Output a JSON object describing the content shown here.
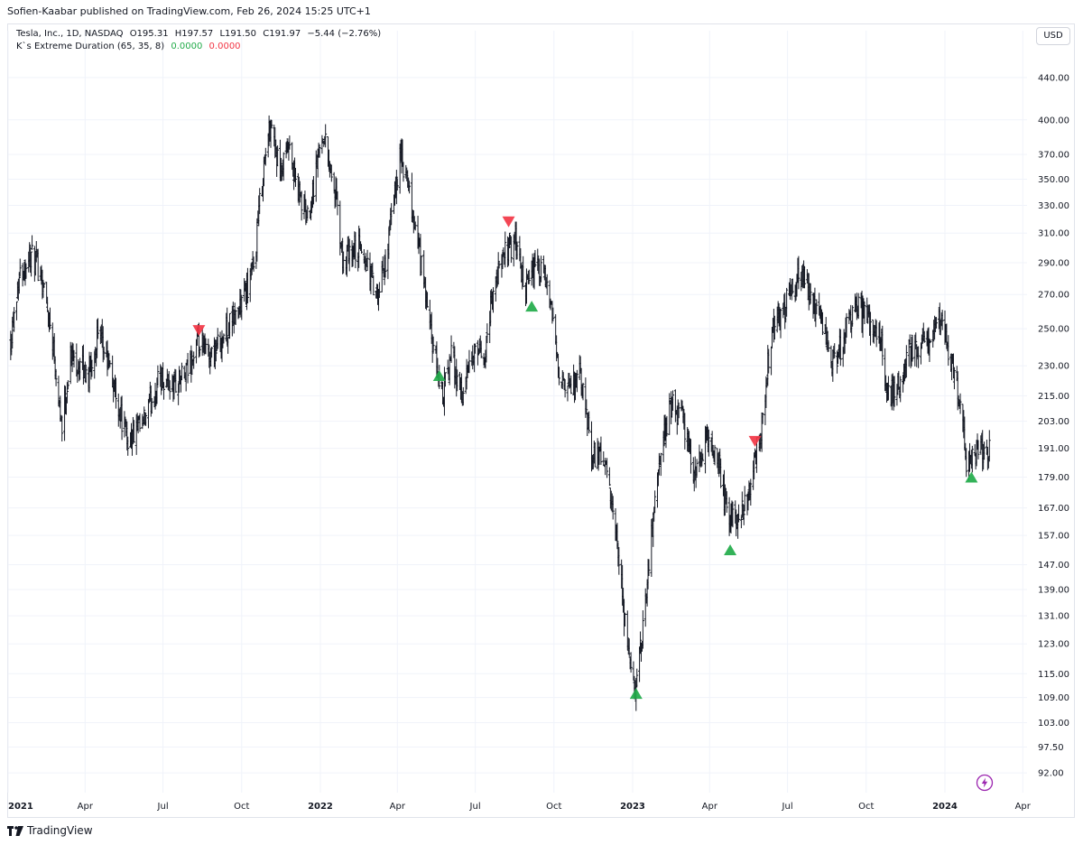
{
  "header": {
    "publish_line": "Sofien-Kaabar published on TradingView.com, Feb 26, 2024 15:25 UTC+1"
  },
  "legend": {
    "symbol": "Tesla, Inc., 1D, NASDAQ",
    "open": "O195.31",
    "high": "H197.57",
    "low": "L191.50",
    "close": "C191.97",
    "change": "−5.44 (−2.76%)",
    "indicator_name": "K`s Extreme Duration (65, 35, 8)",
    "indicator_value_1": "0.0000",
    "indicator_value_2": "0.0000"
  },
  "toolbar": {
    "currency_label": "USD"
  },
  "footer": {
    "brand": "TradingView"
  },
  "icons": {
    "currency": "usd-button",
    "alert": "lightning-bolt-icon",
    "brand": "tradingview-logo-icon"
  },
  "colors": {
    "bars": "#131722",
    "buy_signal": "#22ab4a",
    "sell_signal": "#f23645",
    "bolt": "#9c27b0",
    "grid": "#f0f3fa"
  },
  "chart_data": {
    "type": "ohlc",
    "title": "",
    "scale": "log",
    "ylim": [
      88,
      460
    ],
    "xlim": [
      "2021-01-01",
      "2024-04-06"
    ],
    "y_ticks": [
      "440.00",
      "400.00",
      "370.00",
      "350.00",
      "330.00",
      "310.00",
      "290.00",
      "270.00",
      "250.00",
      "230.00",
      "215.00",
      "203.00",
      "191.00",
      "179.00",
      "167.00",
      "157.00",
      "147.00",
      "139.00",
      "131.00",
      "123.00",
      "115.00",
      "109.00",
      "103.00",
      "97.50",
      "92.00"
    ],
    "x_ticks": [
      {
        "label": "2021",
        "date": "2021-01-01",
        "bold": true
      },
      {
        "label": "Apr",
        "date": "2021-04-01",
        "bold": false
      },
      {
        "label": "Jul",
        "date": "2021-07-01",
        "bold": false
      },
      {
        "label": "Oct",
        "date": "2021-10-01",
        "bold": false
      },
      {
        "label": "2022",
        "date": "2022-01-01",
        "bold": true
      },
      {
        "label": "Apr",
        "date": "2022-04-01",
        "bold": false
      },
      {
        "label": "Jul",
        "date": "2022-07-01",
        "bold": false
      },
      {
        "label": "Oct",
        "date": "2022-10-01",
        "bold": false
      },
      {
        "label": "2023",
        "date": "2023-01-01",
        "bold": true
      },
      {
        "label": "Apr",
        "date": "2023-04-01",
        "bold": false
      },
      {
        "label": "Jul",
        "date": "2023-07-01",
        "bold": false
      },
      {
        "label": "Oct",
        "date": "2023-10-01",
        "bold": false
      },
      {
        "label": "2024",
        "date": "2024-01-01",
        "bold": true
      },
      {
        "label": "Apr",
        "date": "2024-04-01",
        "bold": false
      }
    ],
    "price_path": [
      [
        "2021-01-04",
        245
      ],
      [
        "2021-01-13",
        280
      ],
      [
        "2021-01-26",
        295
      ],
      [
        "2021-02-08",
        285
      ],
      [
        "2021-02-23",
        240
      ],
      [
        "2021-03-05",
        200
      ],
      [
        "2021-03-15",
        235
      ],
      [
        "2021-04-05",
        225
      ],
      [
        "2021-04-15",
        245
      ],
      [
        "2021-04-26",
        235
      ],
      [
        "2021-05-07",
        215
      ],
      [
        "2021-05-20",
        195
      ],
      [
        "2021-06-07",
        200
      ],
      [
        "2021-06-28",
        225
      ],
      [
        "2021-07-12",
        220
      ],
      [
        "2021-07-28",
        225
      ],
      [
        "2021-08-10",
        240
      ],
      [
        "2021-08-26",
        235
      ],
      [
        "2021-09-15",
        250
      ],
      [
        "2021-10-01",
        265
      ],
      [
        "2021-10-15",
        285
      ],
      [
        "2021-10-25",
        350
      ],
      [
        "2021-11-04",
        400
      ],
      [
        "2021-11-15",
        350
      ],
      [
        "2021-11-24",
        375
      ],
      [
        "2021-12-06",
        340
      ],
      [
        "2021-12-17",
        320
      ],
      [
        "2022-01-04",
        390
      ],
      [
        "2022-01-18",
        340
      ],
      [
        "2022-01-27",
        290
      ],
      [
        "2022-02-15",
        300
      ],
      [
        "2022-02-28",
        285
      ],
      [
        "2022-03-08",
        265
      ],
      [
        "2022-03-21",
        300
      ],
      [
        "2022-04-04",
        370
      ],
      [
        "2022-04-14",
        340
      ],
      [
        "2022-04-27",
        295
      ],
      [
        "2022-05-12",
        240
      ],
      [
        "2022-05-24",
        215
      ],
      [
        "2022-06-03",
        235
      ],
      [
        "2022-06-16",
        215
      ],
      [
        "2022-06-28",
        235
      ],
      [
        "2022-07-12",
        235
      ],
      [
        "2022-07-22",
        275
      ],
      [
        "2022-08-08",
        300
      ],
      [
        "2022-08-17",
        305
      ],
      [
        "2022-08-29",
        270
      ],
      [
        "2022-09-09",
        290
      ],
      [
        "2022-09-23",
        275
      ],
      [
        "2022-10-05",
        235
      ],
      [
        "2022-10-14",
        215
      ],
      [
        "2022-10-31",
        225
      ],
      [
        "2022-11-14",
        190
      ],
      [
        "2022-11-29",
        185
      ],
      [
        "2022-12-13",
        155
      ],
      [
        "2022-12-22",
        130
      ],
      [
        "2023-01-03",
        110
      ],
      [
        "2023-01-12",
        125
      ],
      [
        "2023-01-27",
        170
      ],
      [
        "2023-02-08",
        200
      ],
      [
        "2023-02-16",
        210
      ],
      [
        "2023-02-28",
        205
      ],
      [
        "2023-03-14",
        180
      ],
      [
        "2023-03-29",
        195
      ],
      [
        "2023-04-12",
        185
      ],
      [
        "2023-04-21",
        165
      ],
      [
        "2023-05-03",
        162
      ],
      [
        "2023-05-18",
        175
      ],
      [
        "2023-05-31",
        200
      ],
      [
        "2023-06-13",
        250
      ],
      [
        "2023-06-26",
        260
      ],
      [
        "2023-07-07",
        275
      ],
      [
        "2023-07-19",
        285
      ],
      [
        "2023-07-31",
        265
      ],
      [
        "2023-08-14",
        245
      ],
      [
        "2023-08-24",
        230
      ],
      [
        "2023-09-08",
        250
      ],
      [
        "2023-09-20",
        265
      ],
      [
        "2023-10-02",
        255
      ],
      [
        "2023-10-17",
        250
      ],
      [
        "2023-10-26",
        215
      ],
      [
        "2023-11-08",
        220
      ],
      [
        "2023-11-17",
        235
      ],
      [
        "2023-12-01",
        240
      ],
      [
        "2023-12-14",
        245
      ],
      [
        "2023-12-27",
        255
      ],
      [
        "2024-01-05",
        240
      ],
      [
        "2024-01-17",
        215
      ],
      [
        "2024-01-26",
        185
      ],
      [
        "2024-02-08",
        190
      ],
      [
        "2024-02-23",
        192
      ]
    ],
    "signals": [
      {
        "type": "sell",
        "date": "2021-08-12",
        "price": 249
      },
      {
        "type": "buy",
        "date": "2022-05-20",
        "price": 225
      },
      {
        "type": "sell",
        "date": "2022-08-09",
        "price": 318
      },
      {
        "type": "buy",
        "date": "2022-09-05",
        "price": 263
      },
      {
        "type": "buy",
        "date": "2023-01-05",
        "price": 110
      },
      {
        "type": "buy",
        "date": "2023-04-25",
        "price": 152
      },
      {
        "type": "sell",
        "date": "2023-05-24",
        "price": 194
      },
      {
        "type": "buy",
        "date": "2024-02-01",
        "price": 179
      }
    ]
  }
}
